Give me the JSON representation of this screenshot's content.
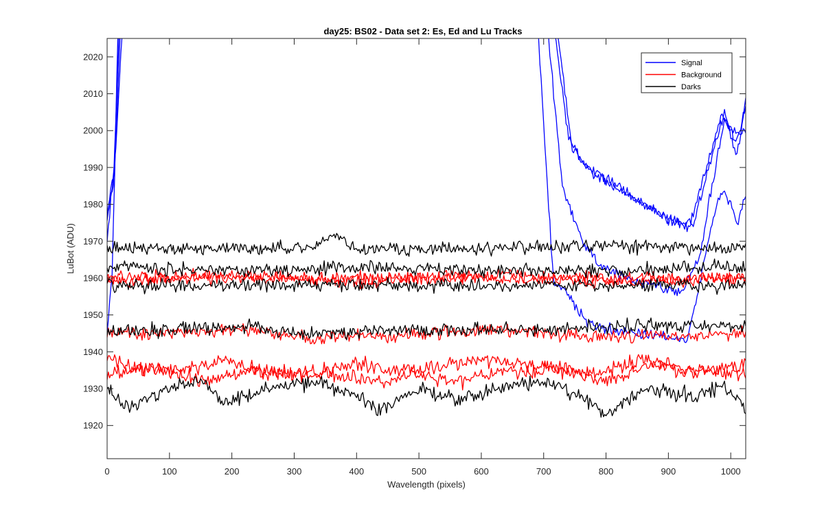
{
  "chart_data": {
    "type": "line",
    "title": "day25: BS02 - Data set 2: Es, Ed and Lu Tracks",
    "xlabel": "Wavelength (pixels)",
    "ylabel": "LuBot (ADU)",
    "xlim": [
      0,
      1024
    ],
    "ylim": [
      1911,
      2025
    ],
    "xticks": [
      0,
      100,
      200,
      300,
      400,
      500,
      600,
      700,
      800,
      900,
      1000
    ],
    "yticks": [
      1920,
      1930,
      1940,
      1950,
      1960,
      1970,
      1980,
      1990,
      2000,
      2010,
      2020
    ],
    "grid": false,
    "legend_location": "top-right",
    "x_step": 2,
    "legend": [
      {
        "label": "Signal",
        "color": "#0000ff"
      },
      {
        "label": "Background",
        "color": "#ff0000"
      },
      {
        "label": "Darks",
        "color": "#000000"
      }
    ],
    "series": [
      {
        "group": "Signal",
        "color": "#0000ff",
        "noise": 0.9,
        "seed": 11,
        "knots": [
          [
            0,
            1976
          ],
          [
            10,
            1985
          ],
          [
            20,
            2030
          ],
          [
            690,
            2030
          ],
          [
            715,
            1960
          ],
          [
            740,
            1955
          ],
          [
            770,
            1948
          ],
          [
            800,
            1946
          ],
          [
            850,
            1945
          ],
          [
            900,
            1944
          ],
          [
            930,
            1943
          ],
          [
            950,
            1958
          ],
          [
            970,
            1975
          ],
          [
            985,
            1984
          ],
          [
            1000,
            1980
          ],
          [
            1012,
            1975
          ],
          [
            1024,
            1983
          ]
        ]
      },
      {
        "group": "Signal",
        "color": "#0000ff",
        "noise": 0.9,
        "seed": 12,
        "knots": [
          [
            0,
            1945
          ],
          [
            8,
            1960
          ],
          [
            18,
            2030
          ],
          [
            705,
            2030
          ],
          [
            730,
            1985
          ],
          [
            760,
            1970
          ],
          [
            790,
            1964
          ],
          [
            830,
            1960
          ],
          [
            870,
            1958
          ],
          [
            920,
            1956
          ],
          [
            950,
            1966
          ],
          [
            970,
            1985
          ],
          [
            990,
            2003
          ],
          [
            1010,
            1997
          ],
          [
            1024,
            2006
          ]
        ]
      },
      {
        "group": "Signal",
        "color": "#0000ff",
        "noise": 0.9,
        "seed": 13,
        "knots": [
          [
            0,
            1978
          ],
          [
            12,
            1990
          ],
          [
            22,
            2030
          ],
          [
            715,
            2030
          ],
          [
            740,
            1998
          ],
          [
            770,
            1990
          ],
          [
            820,
            1985
          ],
          [
            860,
            1980
          ],
          [
            900,
            1976
          ],
          [
            935,
            1974
          ],
          [
            960,
            1990
          ],
          [
            985,
            2004
          ],
          [
            1005,
            1999
          ],
          [
            1024,
            2000
          ]
        ]
      },
      {
        "group": "Signal",
        "color": "#0000ff",
        "noise": 0.9,
        "seed": 14,
        "knots": [
          [
            0,
            1970
          ],
          [
            14,
            1995
          ],
          [
            25,
            2030
          ],
          [
            720,
            2030
          ],
          [
            745,
            1995
          ],
          [
            780,
            1988
          ],
          [
            830,
            1983
          ],
          [
            870,
            1979
          ],
          [
            910,
            1975
          ],
          [
            940,
            1975
          ],
          [
            965,
            1990
          ],
          [
            990,
            2005
          ],
          [
            1010,
            1993
          ],
          [
            1024,
            2008
          ]
        ]
      },
      {
        "group": "Background",
        "color": "#ff0000",
        "noise": 1.1,
        "seed": 21,
        "knots": [
          [
            0,
            1960
          ],
          [
            200,
            1961
          ],
          [
            400,
            1959
          ],
          [
            600,
            1961
          ],
          [
            800,
            1960
          ],
          [
            1024,
            1960
          ]
        ]
      },
      {
        "group": "Background",
        "color": "#ff0000",
        "noise": 1.1,
        "seed": 22,
        "knots": [
          [
            0,
            1959
          ],
          [
            200,
            1960
          ],
          [
            400,
            1960
          ],
          [
            600,
            1960
          ],
          [
            800,
            1959
          ],
          [
            1024,
            1960
          ]
        ]
      },
      {
        "group": "Background",
        "color": "#ff0000",
        "noise": 1.1,
        "seed": 23,
        "knots": [
          [
            0,
            1945
          ],
          [
            100,
            1945
          ],
          [
            220,
            1946
          ],
          [
            320,
            1944
          ],
          [
            450,
            1944
          ],
          [
            600,
            1946
          ],
          [
            800,
            1944
          ],
          [
            1024,
            1945
          ]
        ]
      },
      {
        "group": "Background",
        "color": "#ff0000",
        "noise": 1.2,
        "seed": 24,
        "knots": [
          [
            0,
            1938
          ],
          [
            60,
            1935
          ],
          [
            120,
            1935
          ],
          [
            190,
            1938
          ],
          [
            250,
            1934
          ],
          [
            320,
            1934
          ],
          [
            400,
            1937
          ],
          [
            450,
            1935
          ],
          [
            500,
            1935
          ],
          [
            600,
            1938
          ],
          [
            700,
            1936
          ],
          [
            780,
            1934
          ],
          [
            860,
            1938
          ],
          [
            940,
            1934
          ],
          [
            1024,
            1937
          ]
        ]
      },
      {
        "group": "Background",
        "color": "#ff0000",
        "noise": 1.2,
        "seed": 25,
        "knots": [
          [
            0,
            1934
          ],
          [
            80,
            1936
          ],
          [
            150,
            1932
          ],
          [
            230,
            1935
          ],
          [
            300,
            1934
          ],
          [
            360,
            1934
          ],
          [
            430,
            1932
          ],
          [
            500,
            1934
          ],
          [
            560,
            1932
          ],
          [
            640,
            1935
          ],
          [
            720,
            1935
          ],
          [
            800,
            1932
          ],
          [
            880,
            1937
          ],
          [
            960,
            1935
          ],
          [
            1024,
            1934
          ]
        ]
      },
      {
        "group": "Darks",
        "color": "#000000",
        "noise": 1.1,
        "seed": 31,
        "knots": [
          [
            0,
            1968
          ],
          [
            200,
            1968
          ],
          [
            330,
            1968
          ],
          [
            365,
            1972
          ],
          [
            400,
            1968
          ],
          [
            600,
            1968
          ],
          [
            800,
            1969
          ],
          [
            1024,
            1968
          ]
        ]
      },
      {
        "group": "Darks",
        "color": "#000000",
        "noise": 1.1,
        "seed": 32,
        "knots": [
          [
            0,
            1963
          ],
          [
            200,
            1962
          ],
          [
            400,
            1963
          ],
          [
            600,
            1962
          ],
          [
            800,
            1962
          ],
          [
            1024,
            1963
          ]
        ]
      },
      {
        "group": "Darks",
        "color": "#000000",
        "noise": 1.1,
        "seed": 33,
        "knots": [
          [
            0,
            1958
          ],
          [
            200,
            1958
          ],
          [
            400,
            1958
          ],
          [
            600,
            1958
          ],
          [
            800,
            1958
          ],
          [
            1024,
            1958
          ]
        ]
      },
      {
        "group": "Darks",
        "color": "#000000",
        "noise": 1.1,
        "seed": 34,
        "knots": [
          [
            0,
            1945
          ],
          [
            100,
            1946
          ],
          [
            230,
            1947
          ],
          [
            300,
            1945
          ],
          [
            500,
            1946
          ],
          [
            700,
            1946
          ],
          [
            850,
            1947
          ],
          [
            1024,
            1947
          ]
        ]
      },
      {
        "group": "Darks",
        "color": "#000000",
        "noise": 1.2,
        "seed": 35,
        "knots": [
          [
            0,
            1930
          ],
          [
            30,
            1925
          ],
          [
            100,
            1930
          ],
          [
            150,
            1932
          ],
          [
            190,
            1926
          ],
          [
            260,
            1930
          ],
          [
            340,
            1932
          ],
          [
            400,
            1928
          ],
          [
            440,
            1924
          ],
          [
            500,
            1930
          ],
          [
            560,
            1927
          ],
          [
            620,
            1930
          ],
          [
            700,
            1932
          ],
          [
            760,
            1928
          ],
          [
            800,
            1923
          ],
          [
            860,
            1930
          ],
          [
            940,
            1928
          ],
          [
            990,
            1931
          ],
          [
            1024,
            1925
          ]
        ]
      }
    ]
  }
}
